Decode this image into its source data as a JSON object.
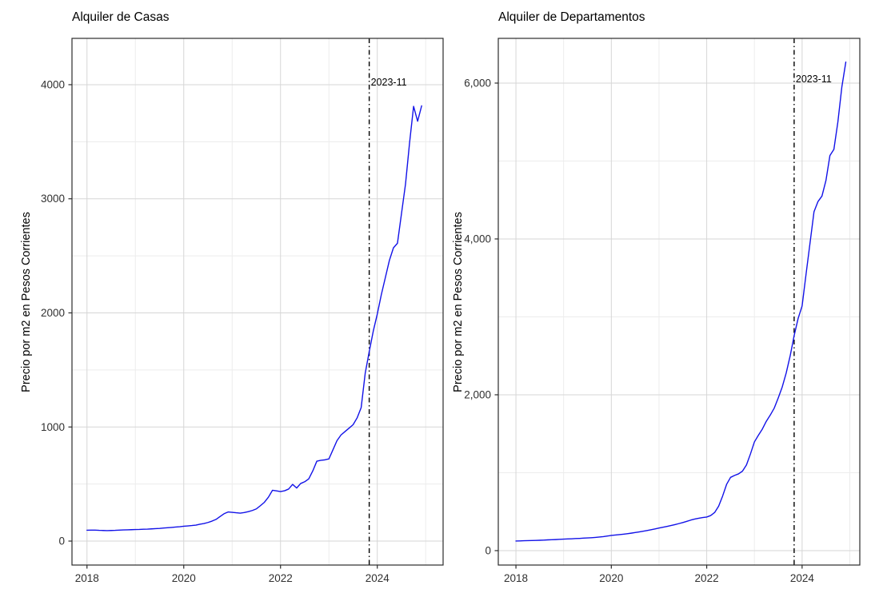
{
  "figure": {
    "background": "#ffffff",
    "line_color": "#1212e8",
    "grid_major_color": "#d6d6d6",
    "grid_minor_color": "#ececec",
    "panel_border_color": "#2b2b2b",
    "tick_label_color": "#303030"
  },
  "chart_data": [
    {
      "type": "line",
      "title": "Alquiler de Casas",
      "xlabel": "",
      "ylabel": "Precio por m2 en Pesos Corrientes",
      "x_start_year": 2018,
      "x_start_month": 1,
      "x_step_months": 1,
      "values": [
        95,
        96,
        96,
        94,
        93,
        92,
        93,
        94,
        96,
        98,
        99,
        100,
        101,
        102,
        104,
        105,
        107,
        109,
        111,
        114,
        117,
        120,
        123,
        126,
        130,
        133,
        136,
        140,
        148,
        154,
        163,
        175,
        190,
        215,
        240,
        255,
        252,
        248,
        245,
        250,
        258,
        268,
        282,
        310,
        340,
        385,
        445,
        440,
        434,
        441,
        456,
        497,
        465,
        505,
        520,
        545,
        615,
        700,
        708,
        712,
        720,
        800,
        880,
        930,
        960,
        990,
        1020,
        1080,
        1170,
        1470,
        1660,
        1840,
        1990,
        2160,
        2310,
        2460,
        2570,
        2610,
        2870,
        3130,
        3490,
        3810,
        3680,
        3815
      ],
      "x_ticks": [
        2018,
        2020,
        2022,
        2024
      ],
      "x_tick_labels": [
        "2018",
        "2020",
        "2022",
        "2024"
      ],
      "x_minor": [
        2019,
        2021,
        2023,
        2025
      ],
      "y_ticks": [
        0,
        1000,
        2000,
        3000,
        4000
      ],
      "y_tick_labels": [
        "0",
        "1000",
        "2000",
        "3000",
        "4000"
      ],
      "y_minor": [
        500,
        1500,
        2500,
        3500
      ],
      "xlim": [
        2017.69,
        2025.36
      ],
      "ylim": [
        -210,
        4406
      ],
      "grid": "on",
      "legend": "none",
      "line_color": "#1212e8",
      "vline": {
        "x": 2023.833,
        "label": "2023-11",
        "style": "dotdash",
        "color": "#000000"
      }
    },
    {
      "type": "line",
      "title": "Alquiler de Departamentos",
      "xlabel": "",
      "ylabel": "Precio por m2 en Pesos Corrientes",
      "x_start_year": 2018,
      "x_start_month": 1,
      "x_step_months": 1,
      "values": [
        123,
        125,
        127,
        128,
        130,
        131,
        133,
        135,
        138,
        140,
        142,
        145,
        148,
        150,
        152,
        155,
        157,
        160,
        163,
        166,
        170,
        175,
        180,
        187,
        195,
        200,
        205,
        211,
        217,
        224,
        232,
        240,
        249,
        258,
        268,
        279,
        290,
        300,
        311,
        322,
        334,
        347,
        361,
        376,
        392,
        405,
        416,
        424,
        431,
        450,
        490,
        570,
        700,
        850,
        940,
        965,
        985,
        1020,
        1100,
        1240,
        1395,
        1480,
        1560,
        1660,
        1740,
        1830,
        1960,
        2100,
        2280,
        2500,
        2760,
        2980,
        3140,
        3550,
        3950,
        4350,
        4480,
        4550,
        4750,
        5070,
        5150,
        5500,
        5950,
        6270
      ],
      "x_ticks": [
        2018,
        2020,
        2022,
        2024
      ],
      "x_tick_labels": [
        "2018",
        "2020",
        "2022",
        "2024"
      ],
      "x_minor": [
        2019,
        2021,
        2023,
        2025
      ],
      "y_ticks": [
        0,
        2000,
        4000,
        6000
      ],
      "y_tick_labels": [
        "0",
        "2,000",
        "4,000",
        "6,000"
      ],
      "y_minor": [
        1000,
        3000,
        5000
      ],
      "xlim": [
        2017.63,
        2025.21
      ],
      "ylim": [
        -185,
        6574
      ],
      "grid": "on",
      "legend": "none",
      "line_color": "#1212e8",
      "vline": {
        "x": 2023.833,
        "label": "2023-11",
        "style": "dotdash",
        "color": "#000000"
      }
    }
  ]
}
